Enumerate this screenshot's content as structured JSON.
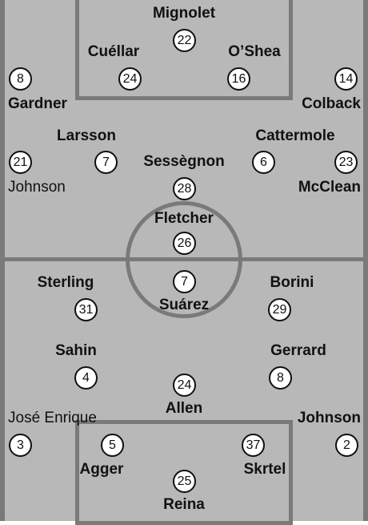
{
  "colors": {
    "pitch": "#b8b8b8",
    "lines": "#7a7a7a",
    "text": "#111111",
    "token": "#ffffff"
  },
  "sunderland": [
    {
      "name": "Mignolet",
      "number": "22"
    },
    {
      "name": "Cuéllar",
      "number": "24"
    },
    {
      "name": "O’Shea",
      "number": "16"
    },
    {
      "name": "Gardner",
      "number": "8"
    },
    {
      "name": "Colback",
      "number": "14"
    },
    {
      "name": "Larsson",
      "number": "7"
    },
    {
      "name": "Cattermole",
      "number": "6"
    },
    {
      "name": "Johnson",
      "number": "21"
    },
    {
      "name": "McClean",
      "number": "23"
    },
    {
      "name": "Sessègnon",
      "number": "28"
    },
    {
      "name": "Fletcher",
      "number": "26"
    }
  ],
  "liverpool": [
    {
      "name": "Suárez",
      "number": "7"
    },
    {
      "name": "Sterling",
      "number": "31"
    },
    {
      "name": "Borini",
      "number": "29"
    },
    {
      "name": "Sahin",
      "number": "4"
    },
    {
      "name": "Gerrard",
      "number": "8"
    },
    {
      "name": "Allen",
      "number": "24"
    },
    {
      "name": "José Enrique",
      "number": "3"
    },
    {
      "name": "Johnson",
      "number": "2"
    },
    {
      "name": "Agger",
      "number": "5"
    },
    {
      "name": "Skrtel",
      "number": "37"
    },
    {
      "name": "Reina",
      "number": "25"
    }
  ]
}
